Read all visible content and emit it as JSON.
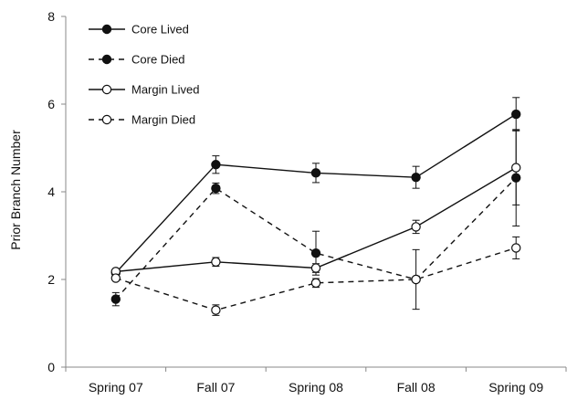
{
  "chart_data": {
    "type": "line",
    "title": "",
    "xlabel": "",
    "ylabel": "Prior Branch Number",
    "categories": [
      "Spring 07",
      "Fall 07",
      "Spring 08",
      "Fall 08",
      "Spring 09"
    ],
    "ylim": [
      0,
      8
    ],
    "yticks": [
      0,
      2,
      4,
      6,
      8
    ],
    "grid": false,
    "legend_position": "top-left",
    "series": [
      {
        "name": "Core Lived",
        "line_style": "solid",
        "marker": "filled-circle",
        "values": [
          2.15,
          4.62,
          4.43,
          4.33,
          5.77
        ],
        "errors": [
          0.0,
          0.2,
          0.22,
          0.25,
          0.38
        ]
      },
      {
        "name": "Core Died",
        "line_style": "dashed",
        "marker": "filled-circle",
        "values": [
          1.55,
          4.08,
          2.6,
          2.0,
          4.32
        ],
        "errors": [
          0.15,
          0.12,
          0.5,
          0.0,
          1.1
        ]
      },
      {
        "name": "Margin Lived",
        "line_style": "solid",
        "marker": "open-circle",
        "values": [
          2.18,
          2.4,
          2.26,
          3.2,
          4.55
        ],
        "errors": [
          0.0,
          0.1,
          0.1,
          0.15,
          0.85
        ]
      },
      {
        "name": "Margin Died",
        "line_style": "dashed",
        "marker": "open-circle",
        "values": [
          2.03,
          1.3,
          1.92,
          2.0,
          2.72
        ],
        "errors": [
          0.0,
          0.12,
          0.1,
          0.68,
          0.25
        ]
      }
    ]
  }
}
